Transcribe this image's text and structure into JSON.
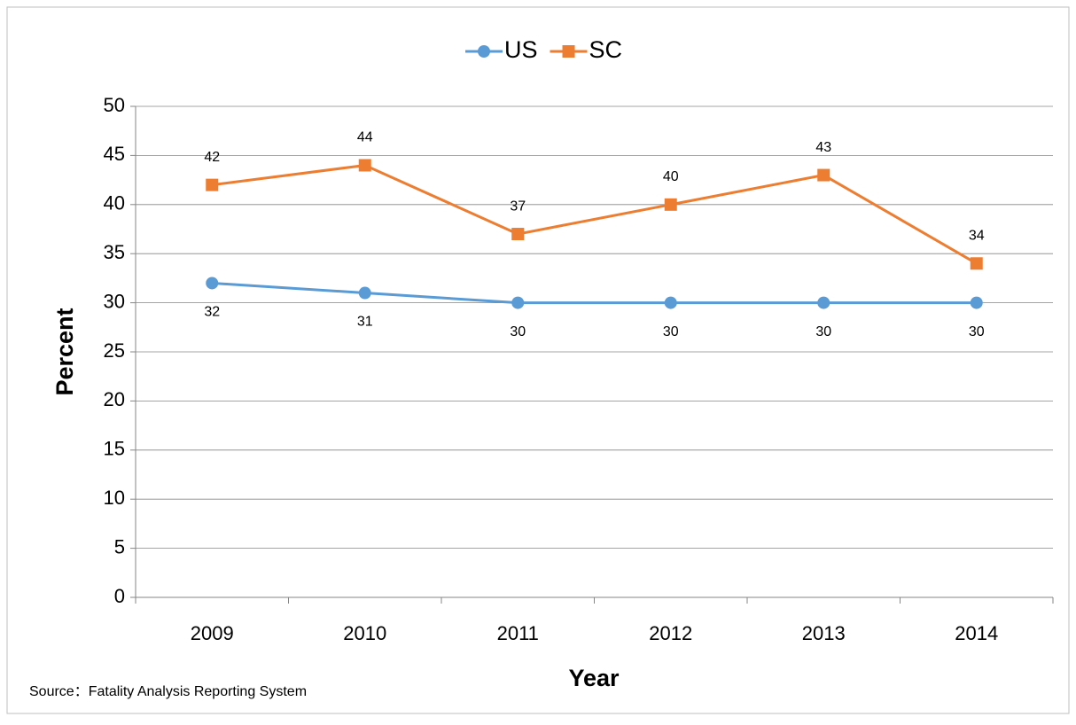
{
  "chart_data": {
    "type": "line",
    "categories": [
      "2009",
      "2010",
      "2011",
      "2012",
      "2013",
      "2014"
    ],
    "series": [
      {
        "name": "US",
        "color": "#5b9bd5",
        "marker": "circle",
        "label_position": "below",
        "values": [
          32,
          31,
          30,
          30,
          30,
          30
        ]
      },
      {
        "name": "SC",
        "color": "#ed7d31",
        "marker": "square",
        "label_position": "above",
        "values": [
          42,
          44,
          37,
          40,
          43,
          34
        ]
      }
    ],
    "ylim": [
      0,
      50
    ],
    "yticks": [
      0,
      5,
      10,
      15,
      20,
      25,
      30,
      35,
      40,
      45,
      50
    ],
    "grid": true,
    "y_label": "Percent",
    "x_label": "Year",
    "legend": "top",
    "source": "Source：Fatality Analysis Reporting System"
  }
}
